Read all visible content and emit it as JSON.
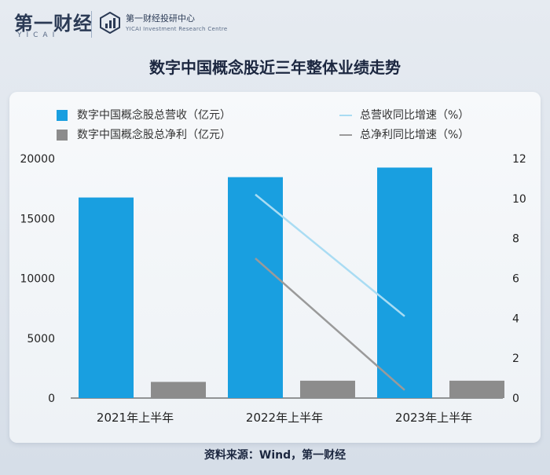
{
  "header": {
    "logo_text": "第一财经",
    "logo_sub": "YICAI",
    "institute_name": "第一财经投研中心",
    "institute_en": "YICAI Investment Research Centre"
  },
  "title": "数字中国概念股近三年整体业绩走势",
  "source": "资料来源：Wind，第一财经",
  "colors": {
    "revenue_bar": "#199fe0",
    "profit_bar": "#8c8c8c",
    "revenue_line": "#a9dcf3",
    "profit_line": "#9a9a9a"
  },
  "legend": {
    "revenue_bar": "数字中国概念股总营收（亿元）",
    "profit_bar": "数字中国概念股总净利（亿元）",
    "revenue_line": "总营收同比增速（%）",
    "profit_line": "总净利同比增速（%）"
  },
  "chart_data": {
    "type": "bar",
    "categories": [
      "2021年上半年",
      "2022年上半年",
      "2023年上半年"
    ],
    "series": [
      {
        "name": "数字中国概念股总营收（亿元）",
        "type": "bar",
        "axis": "left",
        "values": [
          16750,
          18450,
          19250
        ]
      },
      {
        "name": "数字中国概念股总净利（亿元）",
        "type": "bar",
        "axis": "left",
        "values": [
          1350,
          1450,
          1450
        ]
      },
      {
        "name": "总营收同比增速（%）",
        "type": "line",
        "axis": "right",
        "values": [
          null,
          10.2,
          4.1
        ]
      },
      {
        "name": "总净利同比增速（%）",
        "type": "line",
        "axis": "right",
        "values": [
          null,
          7.0,
          0.4
        ]
      }
    ],
    "y_left": {
      "min": 0,
      "max": 20000,
      "ticks": [
        0,
        5000,
        10000,
        15000,
        20000
      ],
      "tick_labels": [
        "0",
        "5000",
        "10000",
        "15000",
        "20000"
      ]
    },
    "y_right": {
      "min": 0,
      "max": 12,
      "ticks": [
        0,
        2,
        4,
        6,
        8,
        10,
        12
      ],
      "tick_labels": [
        "0",
        "2",
        "4",
        "6",
        "8",
        "10",
        "12"
      ]
    },
    "grid": false,
    "legend_position": "top"
  }
}
